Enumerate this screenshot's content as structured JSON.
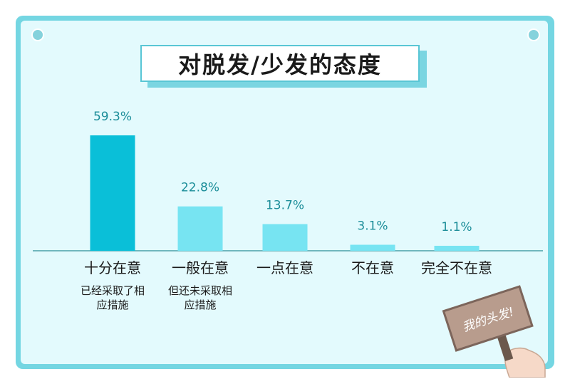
{
  "title": "对脱发/少发的态度",
  "colors": {
    "frame": "#74d6e2",
    "panel": "#e3fafd",
    "bar_primary": "#0abfd8",
    "bar_secondary": "#77e4f2",
    "value_label": "#1b8d99",
    "baseline": "#4a9fa8"
  },
  "chart_data": {
    "type": "bar",
    "categories": [
      "十分在意",
      "一般在意",
      "一点在意",
      "不在意",
      "完全不在意"
    ],
    "sublabels": [
      "已经采取了相应措施",
      "但还未采取相应措施",
      "",
      "",
      ""
    ],
    "values": [
      59.3,
      22.8,
      13.7,
      3.1,
      1.1
    ],
    "value_labels": [
      "59.3%",
      "22.8%",
      "13.7%",
      "3.1%",
      "1.1%"
    ],
    "unit": "%",
    "ylim": [
      0,
      59.3
    ],
    "grid": false,
    "legend": "none"
  },
  "sign": {
    "text": "我的头发!",
    "icon": "protest-sign-icon"
  }
}
